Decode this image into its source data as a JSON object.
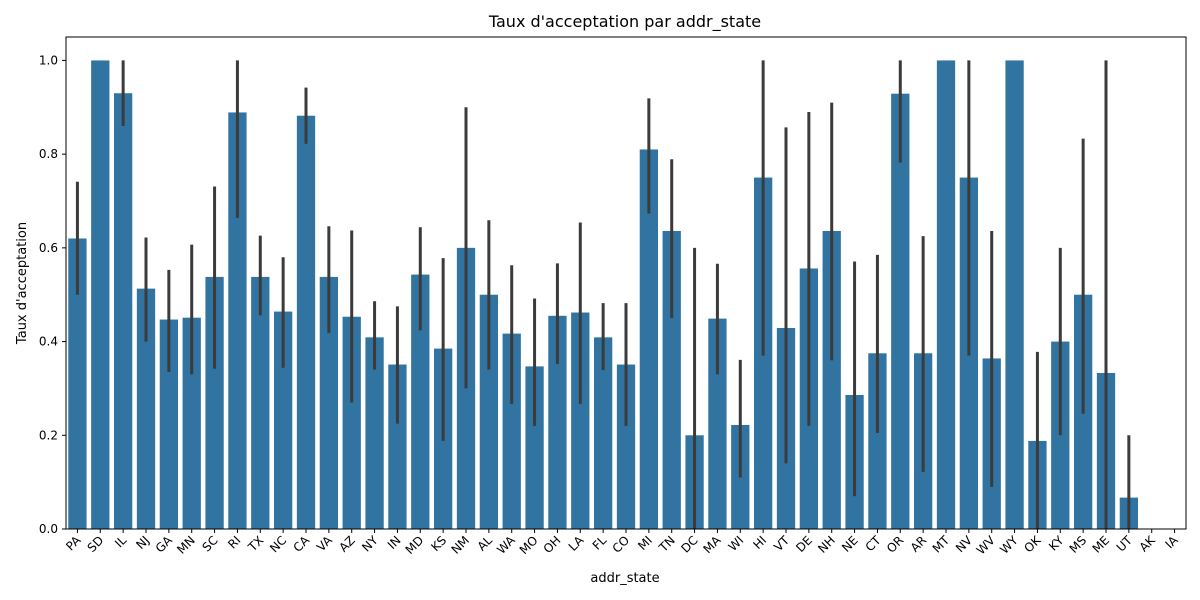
{
  "chart_data": {
    "type": "bar",
    "title": "Taux d'acceptation par addr_state",
    "xlabel": "addr_state",
    "ylabel": "Taux d'acceptation",
    "ylim": [
      0,
      1.05
    ],
    "yticks": [
      0.0,
      0.2,
      0.4,
      0.6,
      0.8,
      1.0
    ],
    "ytick_labels": [
      "0.0",
      "0.2",
      "0.4",
      "0.6",
      "0.8",
      "1.0"
    ],
    "grid": false,
    "bar_color": "#3274a1",
    "errorbar_color": "#3b3b3b",
    "categories": [
      "PA",
      "SD",
      "IL",
      "NJ",
      "GA",
      "MN",
      "SC",
      "RI",
      "TX",
      "NC",
      "CA",
      "VA",
      "AZ",
      "NY",
      "IN",
      "MD",
      "KS",
      "NM",
      "AL",
      "WA",
      "MO",
      "OH",
      "LA",
      "FL",
      "CO",
      "MI",
      "TN",
      "DC",
      "MA",
      "WI",
      "HI",
      "VT",
      "DE",
      "NH",
      "NE",
      "CT",
      "OR",
      "AR",
      "MT",
      "NV",
      "WV",
      "WY",
      "OK",
      "KY",
      "MS",
      "ME",
      "UT",
      "AK",
      "IA"
    ],
    "values": [
      0.62,
      1.0,
      0.93,
      0.513,
      0.447,
      0.451,
      0.538,
      0.889,
      0.538,
      0.464,
      0.882,
      0.538,
      0.453,
      0.409,
      0.351,
      0.543,
      0.385,
      0.6,
      0.5,
      0.417,
      0.347,
      0.455,
      0.462,
      0.409,
      0.351,
      0.81,
      0.636,
      0.2,
      0.449,
      0.222,
      0.75,
      0.429,
      0.556,
      0.636,
      0.286,
      0.375,
      0.929,
      0.375,
      1.0,
      0.75,
      0.364,
      1.0,
      0.188,
      0.4,
      0.5,
      0.333,
      0.067,
      0.0,
      0.0
    ],
    "errors_low": [
      0.5,
      1.0,
      0.86,
      0.4,
      0.335,
      0.33,
      0.342,
      0.664,
      0.456,
      0.344,
      0.822,
      0.418,
      0.27,
      0.34,
      0.225,
      0.424,
      0.188,
      0.3,
      0.34,
      0.267,
      0.22,
      0.352,
      0.267,
      0.339,
      0.22,
      0.673,
      0.45,
      0.0,
      0.33,
      0.11,
      0.37,
      0.14,
      0.22,
      0.36,
      0.07,
      0.205,
      0.782,
      0.122,
      1.0,
      0.37,
      0.09,
      1.0,
      0.0,
      0.2,
      0.246,
      0.0,
      0.0,
      0.0,
      0.0
    ],
    "errors_high": [
      0.741,
      1.0,
      1.0,
      0.622,
      0.553,
      0.607,
      0.731,
      1.0,
      0.626,
      0.58,
      0.942,
      0.646,
      0.637,
      0.486,
      0.475,
      0.644,
      0.578,
      0.9,
      0.659,
      0.563,
      0.492,
      0.567,
      0.654,
      0.482,
      0.482,
      0.919,
      0.789,
      0.6,
      0.566,
      0.361,
      1.0,
      0.857,
      0.89,
      0.91,
      0.571,
      0.585,
      1.0,
      0.625,
      1.0,
      1.0,
      0.636,
      1.0,
      0.378,
      0.6,
      0.833,
      1.0,
      0.2,
      0.0,
      0.0
    ]
  }
}
